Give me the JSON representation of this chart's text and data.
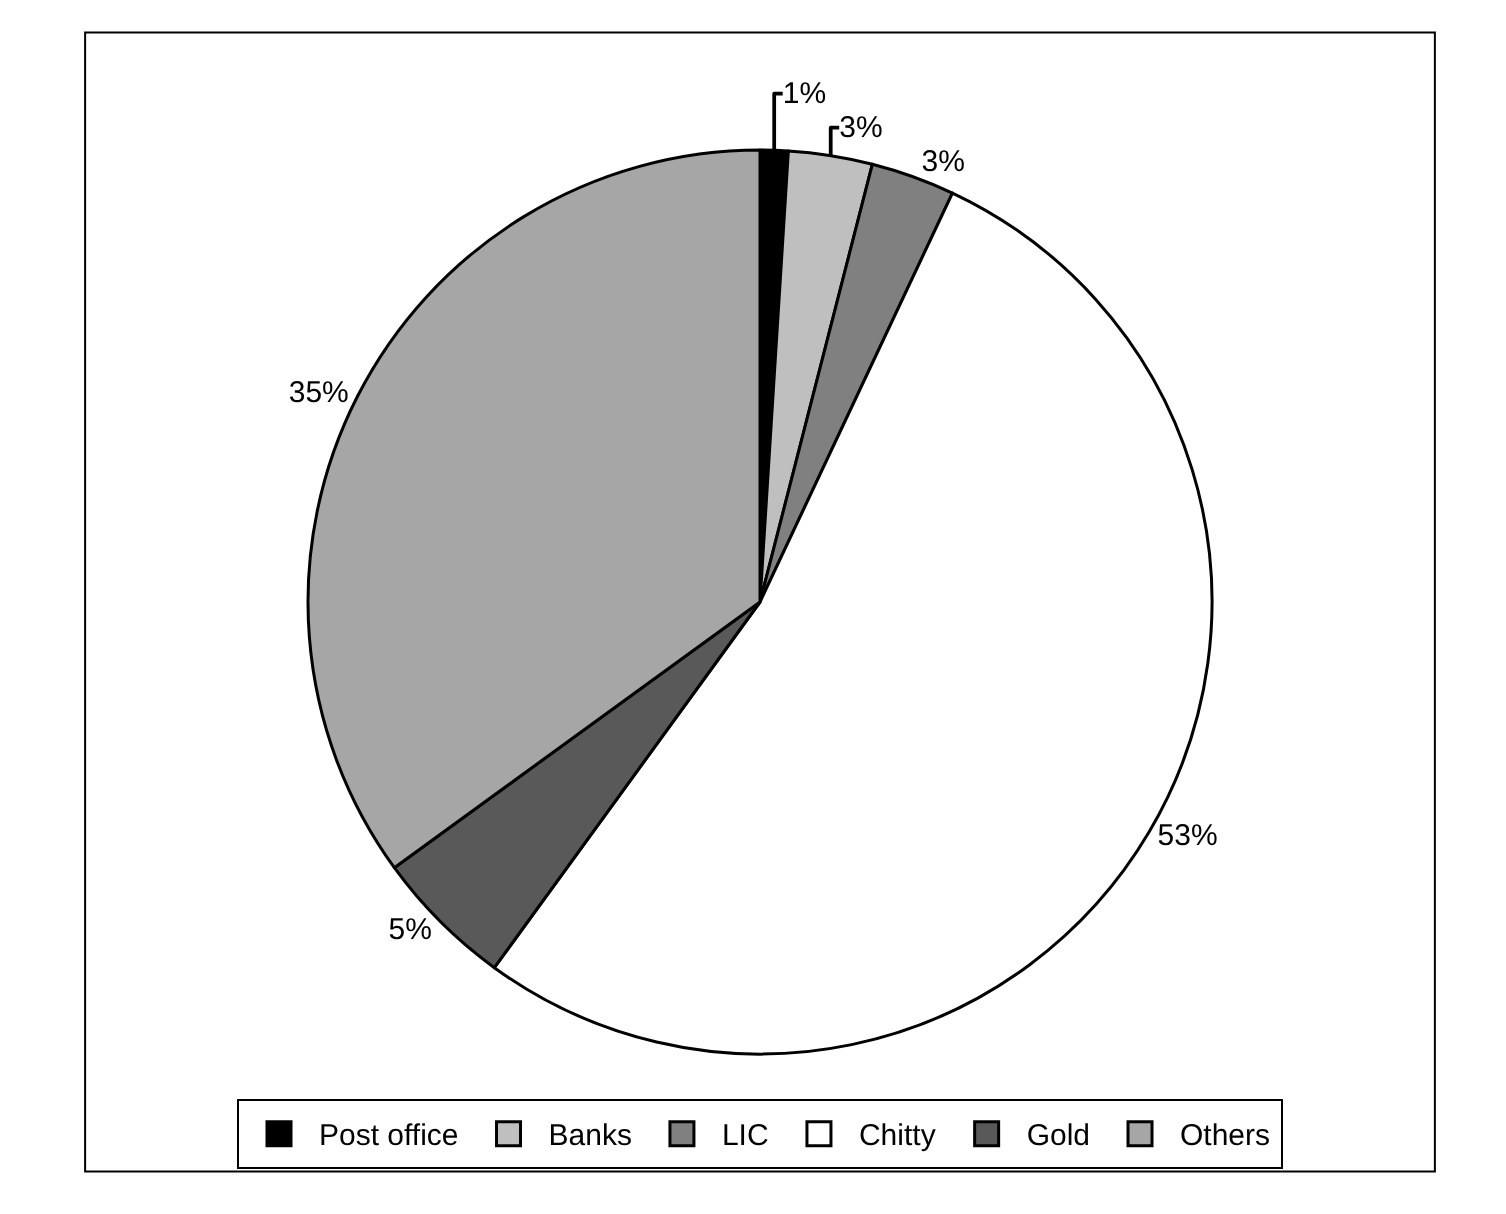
{
  "chart_data": {
    "type": "pie",
    "categories": [
      "Post office",
      "Banks",
      "LIC",
      "Chitty",
      "Gold",
      "Others"
    ],
    "values": [
      1,
      3,
      3,
      53,
      5,
      35
    ],
    "value_labels": [
      "1%",
      "3%",
      "3%",
      "53%",
      "5%",
      "35%"
    ],
    "colors": [
      "#000000",
      "#bfbfbf",
      "#808080",
      "#ffffff",
      "#595959",
      "#a6a6a6"
    ],
    "legend": "bottom"
  }
}
